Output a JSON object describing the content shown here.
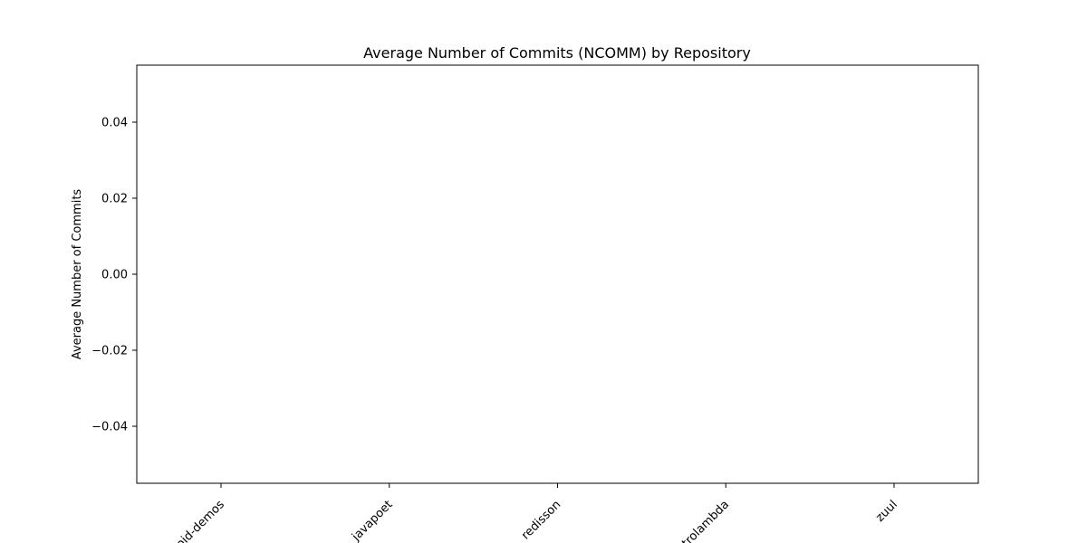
{
  "chart_data": {
    "type": "bar",
    "title": "Average Number of Commits (NCOMM) by Repository",
    "xlabel": "",
    "ylabel": "Average Number of Commits",
    "categories": [
      "android-demos",
      "javapoet",
      "redisson",
      "retrolambda",
      "zuul"
    ],
    "visible_category_labels": [
      "oid-demos",
      "javapoet",
      "redisson",
      "trolambda",
      "zuul"
    ],
    "values": [
      0,
      0,
      0,
      0,
      0
    ],
    "ylim": [
      -0.055,
      0.055
    ],
    "yticks": [
      -0.04,
      -0.02,
      0.0,
      0.02,
      0.04
    ],
    "ytick_labels": [
      "−0.04",
      "−0.02",
      "0.00",
      "0.02",
      "0.04"
    ],
    "xtick_rotation_deg": 45,
    "grid": false,
    "legend": "none"
  },
  "colors": {
    "axes": "#000000",
    "background": "#ffffff",
    "text": "#000000"
  }
}
